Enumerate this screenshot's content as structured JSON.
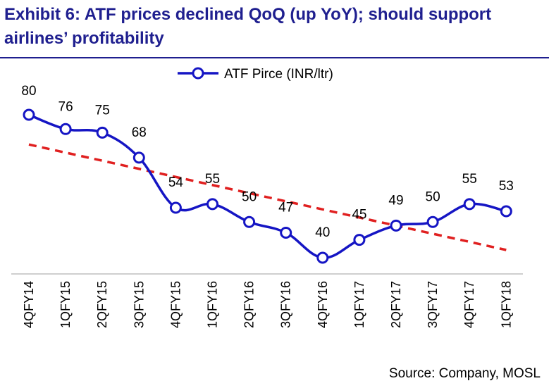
{
  "header": {
    "title": "Exhibit 6: ATF prices declined QoQ (up YoY); should support airlines’ profitability"
  },
  "footer": {
    "source": "Source: Company, MOSL"
  },
  "colors": {
    "title": "#1f1f8f",
    "series": "#1515c4",
    "trend": "#e02020"
  },
  "chart_data": {
    "type": "line",
    "title": "",
    "xlabel": "",
    "ylabel": "",
    "categories": [
      "4QFY14",
      "1QFY15",
      "2QFY15",
      "3QFY15",
      "4QFY15",
      "1QFY16",
      "2QFY16",
      "3QFY16",
      "4QFY16",
      "1QFY17",
      "2QFY17",
      "3QFY17",
      "4QFY17",
      "1QFY18"
    ],
    "series": [
      {
        "name": "ATF Pirce (INR/ltr)",
        "values": [
          80,
          76,
          75,
          68,
          54,
          55,
          50,
          47,
          40,
          45,
          49,
          50,
          55,
          53
        ],
        "marker": "hollow-circle",
        "data_labels": true
      }
    ],
    "trendline": {
      "type": "linear",
      "style": "dashed"
    },
    "ylim": [
      35,
      85
    ],
    "legend": "top-center",
    "grid": false
  }
}
